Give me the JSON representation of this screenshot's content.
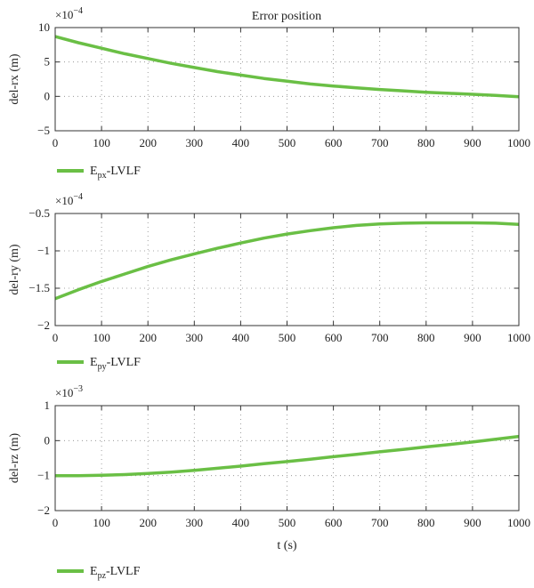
{
  "figure_title": "Error position",
  "chart_data": [
    {
      "type": "line",
      "title": "Error position",
      "multiplier": {
        "base": "×10",
        "exp": "−4"
      },
      "xlabel": "",
      "ylabel": "del-rx (m)",
      "xlim": [
        0,
        1000
      ],
      "ylim": [
        -5,
        10
      ],
      "xticks": [
        0,
        100,
        200,
        300,
        400,
        500,
        600,
        700,
        800,
        900,
        1000
      ],
      "xtick_labels": [
        "0",
        "100",
        "200",
        "300",
        "400",
        "500",
        "600",
        "700",
        "800",
        "900",
        "1000"
      ],
      "yticks": [
        -5,
        0,
        5,
        10
      ],
      "ytick_labels": [
        "−5",
        "0",
        "5",
        "10"
      ],
      "grid": true,
      "legend_placement": "below",
      "legend": {
        "base": "E",
        "sub": "px",
        "rest": "-LVLF"
      },
      "series": [
        {
          "name": "Epx-LVLF",
          "color": "#6abf45",
          "x": [
            0,
            50,
            100,
            150,
            200,
            250,
            300,
            350,
            400,
            450,
            500,
            550,
            600,
            650,
            700,
            750,
            800,
            850,
            900,
            950,
            1000
          ],
          "y": [
            8.7,
            7.8,
            7.0,
            6.2,
            5.5,
            4.8,
            4.2,
            3.6,
            3.1,
            2.6,
            2.2,
            1.8,
            1.5,
            1.25,
            1.0,
            0.8,
            0.6,
            0.45,
            0.3,
            0.15,
            -0.05
          ]
        }
      ]
    },
    {
      "type": "line",
      "title": "",
      "multiplier": {
        "base": "×10",
        "exp": "−4"
      },
      "xlabel": "",
      "ylabel": "del-ry (m)",
      "xlim": [
        0,
        1000
      ],
      "ylim": [
        -2,
        -0.5
      ],
      "xticks": [
        0,
        100,
        200,
        300,
        400,
        500,
        600,
        700,
        800,
        900,
        1000
      ],
      "xtick_labels": [
        "0",
        "100",
        "200",
        "300",
        "400",
        "500",
        "600",
        "700",
        "800",
        "900",
        "1000"
      ],
      "yticks": [
        -2,
        -1.5,
        -1,
        -0.5
      ],
      "ytick_labels": [
        "−2",
        "−1.5",
        "−1",
        "−0.5"
      ],
      "grid": true,
      "legend_placement": "below",
      "legend": {
        "base": "E",
        "sub": "py",
        "rest": "-LVLF"
      },
      "series": [
        {
          "name": "Epy-LVLF",
          "color": "#6abf45",
          "x": [
            0,
            50,
            100,
            150,
            200,
            250,
            300,
            350,
            400,
            450,
            500,
            550,
            600,
            650,
            700,
            750,
            800,
            850,
            900,
            950,
            1000
          ],
          "y": [
            -1.64,
            -1.52,
            -1.41,
            -1.31,
            -1.21,
            -1.12,
            -1.04,
            -0.965,
            -0.895,
            -0.83,
            -0.775,
            -0.73,
            -0.69,
            -0.66,
            -0.64,
            -0.63,
            -0.625,
            -0.625,
            -0.625,
            -0.63,
            -0.645
          ]
        }
      ]
    },
    {
      "type": "line",
      "title": "",
      "multiplier": {
        "base": "×10",
        "exp": "−3"
      },
      "xlabel": "t (s)",
      "ylabel": "del-rz (m)",
      "xlim": [
        0,
        1000
      ],
      "ylim": [
        -2,
        1
      ],
      "xticks": [
        0,
        100,
        200,
        300,
        400,
        500,
        600,
        700,
        800,
        900,
        1000
      ],
      "xtick_labels": [
        "0",
        "100",
        "200",
        "300",
        "400",
        "500",
        "600",
        "700",
        "800",
        "900",
        "1000"
      ],
      "yticks": [
        -2,
        -1,
        0,
        1
      ],
      "ytick_labels": [
        "−2",
        "−1",
        "0",
        "1"
      ],
      "grid": true,
      "legend_placement": "below",
      "legend": {
        "base": "E",
        "sub": "pz",
        "rest": "-LVLF"
      },
      "series": [
        {
          "name": "Epz-LVLF",
          "color": "#6abf45",
          "x": [
            0,
            50,
            100,
            150,
            200,
            250,
            300,
            350,
            400,
            450,
            500,
            550,
            600,
            650,
            700,
            750,
            800,
            850,
            900,
            950,
            1000
          ],
          "y": [
            -1.0,
            -1.0,
            -0.99,
            -0.97,
            -0.94,
            -0.9,
            -0.85,
            -0.79,
            -0.73,
            -0.66,
            -0.6,
            -0.53,
            -0.46,
            -0.39,
            -0.32,
            -0.25,
            -0.18,
            -0.11,
            -0.04,
            0.04,
            0.12
          ]
        }
      ]
    }
  ]
}
